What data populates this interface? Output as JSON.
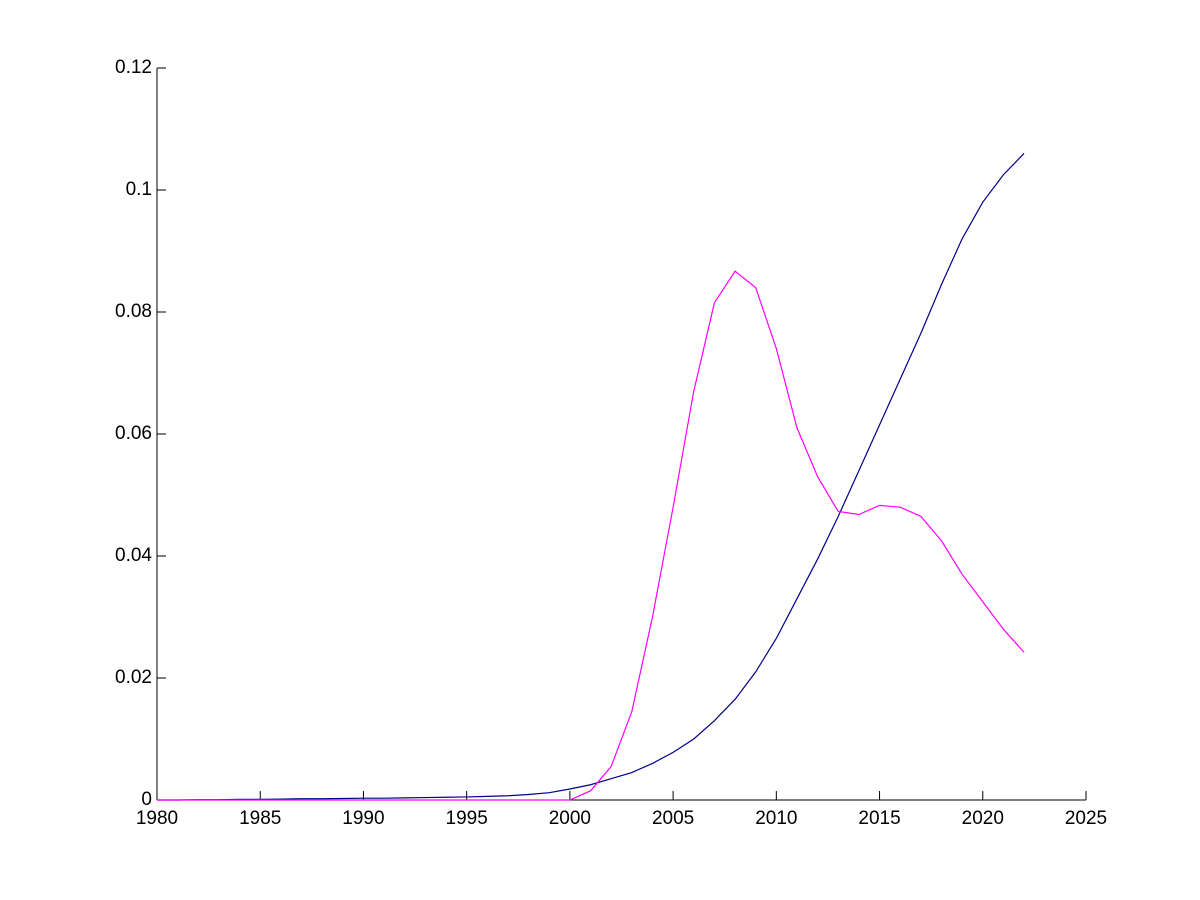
{
  "chart_data": {
    "type": "line",
    "x": [
      1980,
      1981,
      1982,
      1983,
      1984,
      1985,
      1986,
      1987,
      1988,
      1989,
      1990,
      1991,
      1992,
      1993,
      1994,
      1995,
      1996,
      1997,
      1998,
      1999,
      2000,
      2001,
      2002,
      2003,
      2004,
      2005,
      2006,
      2007,
      2008,
      2009,
      2010,
      2011,
      2012,
      2013,
      2014,
      2015,
      2016,
      2017,
      2018,
      2019,
      2020,
      2021,
      2022
    ],
    "series": [
      {
        "color": "#00008b",
        "values": [
          0,
          0,
          5e-05,
          5e-05,
          0.0001,
          0.0001,
          0.00015,
          0.0002,
          0.0002,
          0.00025,
          0.0003,
          0.0003,
          0.00035,
          0.0004,
          0.00045,
          0.0005,
          0.0006,
          0.0007,
          0.0009,
          0.0012,
          0.0018,
          0.0025,
          0.0035,
          0.0045,
          0.006,
          0.0078,
          0.01,
          0.013,
          0.0165,
          0.021,
          0.0265,
          0.033,
          0.0395,
          0.0465,
          0.054,
          0.0615,
          0.069,
          0.0765,
          0.0845,
          0.092,
          0.098,
          0.1025,
          0.106
        ]
      },
      {
        "color": "#ff00ff",
        "values": [
          0,
          0,
          0,
          0,
          0,
          0,
          0,
          0,
          0,
          0,
          0,
          0,
          0,
          0,
          0,
          0,
          0,
          0,
          0,
          0,
          0,
          0.0015,
          0.0055,
          0.0145,
          0.03,
          0.048,
          0.067,
          0.0815,
          0.0867,
          0.084,
          0.074,
          0.061,
          0.053,
          0.0473,
          0.0468,
          0.0483,
          0.048,
          0.0465,
          0.0425,
          0.037,
          0.0325,
          0.028,
          0.0242
        ]
      }
    ],
    "xlim": [
      1980,
      2025
    ],
    "xticks": [
      1980,
      1985,
      1990,
      1995,
      2000,
      2005,
      2010,
      2015,
      2020,
      2025
    ],
    "ylim": [
      0,
      0.12
    ],
    "yticks": [
      0,
      0.02,
      0.04,
      0.06,
      0.08,
      0.1,
      0.12
    ]
  }
}
